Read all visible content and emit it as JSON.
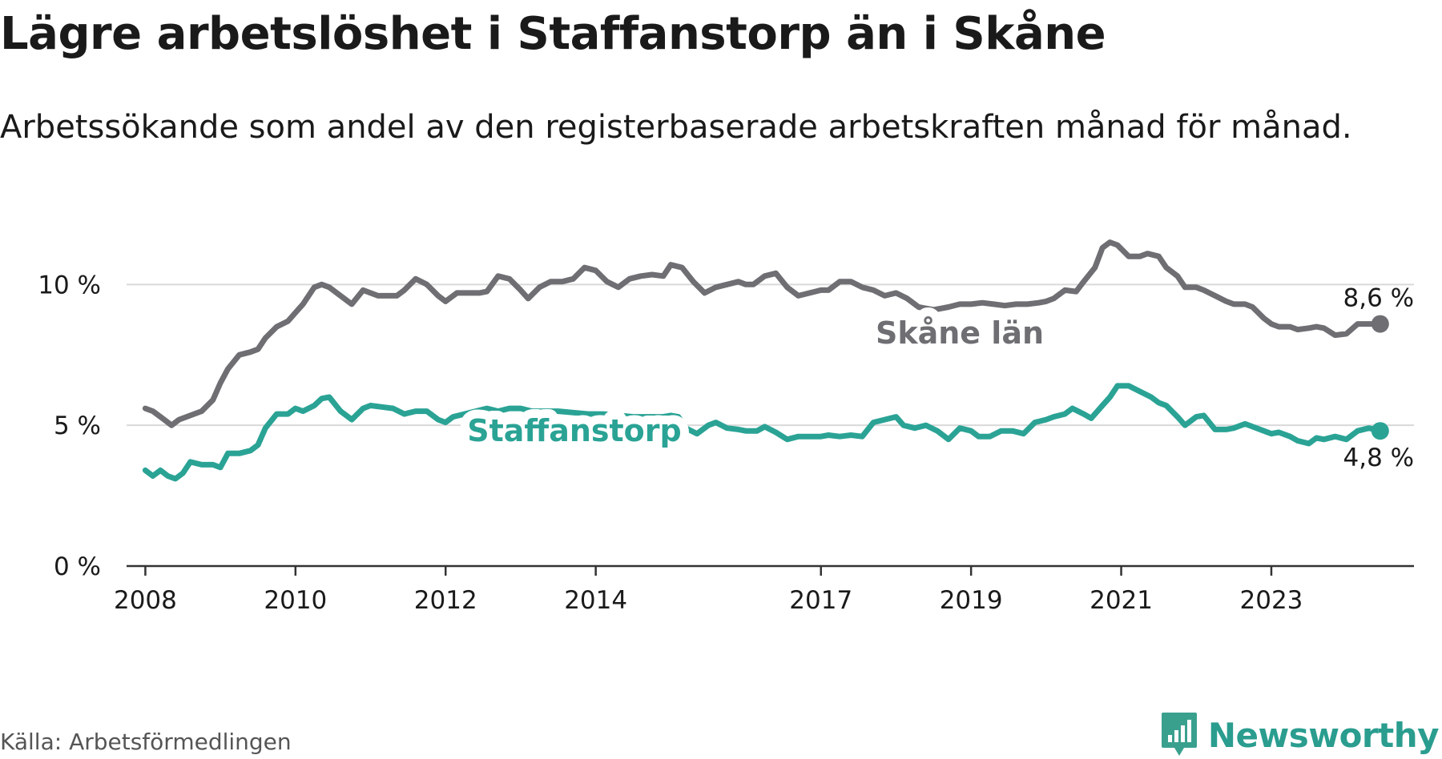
{
  "title": "Lägre arbetslöshet i Staffanstorp än i Skåne",
  "subtitle": "Arbetssökande som andel av den registerbaserade arbetskraften månad för månad.",
  "source": "Källa: Arbetsförmedlingen",
  "brand": {
    "name": "Newsworthy",
    "icon": "newsworthy-logo-icon",
    "color": "#3aa08e"
  },
  "chart_data": {
    "type": "line",
    "xlabel": "",
    "ylabel": "",
    "xlim": [
      2007.75,
      2024.9
    ],
    "ylim": [
      0,
      12
    ],
    "grid": true,
    "yticks": [
      {
        "value": 0,
        "label": "0 %"
      },
      {
        "value": 5,
        "label": "5 %"
      },
      {
        "value": 10,
        "label": "10 %"
      }
    ],
    "xticks": [
      {
        "value": 2008,
        "label": "2008"
      },
      {
        "value": 2010,
        "label": "2010"
      },
      {
        "value": 2012,
        "label": "2012"
      },
      {
        "value": 2014,
        "label": "2014"
      },
      {
        "value": 2017,
        "label": "2017"
      },
      {
        "value": 2019,
        "label": "2019"
      },
      {
        "value": 2021,
        "label": "2021"
      },
      {
        "value": 2023,
        "label": "2023"
      }
    ],
    "series": [
      {
        "name": "Skåne län",
        "color": "#6e6e73",
        "end_label": "8,6 %",
        "points": [
          [
            2008.0,
            5.6
          ],
          [
            2008.1,
            5.5
          ],
          [
            2008.25,
            5.2
          ],
          [
            2008.35,
            5.0
          ],
          [
            2008.45,
            5.2
          ],
          [
            2008.6,
            5.35
          ],
          [
            2008.75,
            5.5
          ],
          [
            2008.9,
            5.9
          ],
          [
            2009.0,
            6.5
          ],
          [
            2009.1,
            7.0
          ],
          [
            2009.25,
            7.5
          ],
          [
            2009.4,
            7.6
          ],
          [
            2009.5,
            7.7
          ],
          [
            2009.6,
            8.1
          ],
          [
            2009.75,
            8.5
          ],
          [
            2009.9,
            8.7
          ],
          [
            2010.0,
            9.0
          ],
          [
            2010.1,
            9.3
          ],
          [
            2010.25,
            9.9
          ],
          [
            2010.35,
            10.0
          ],
          [
            2010.45,
            9.9
          ],
          [
            2010.6,
            9.6
          ],
          [
            2010.75,
            9.3
          ],
          [
            2010.9,
            9.8
          ],
          [
            2011.0,
            9.7
          ],
          [
            2011.1,
            9.6
          ],
          [
            2011.25,
            9.6
          ],
          [
            2011.35,
            9.6
          ],
          [
            2011.45,
            9.8
          ],
          [
            2011.6,
            10.2
          ],
          [
            2011.75,
            10.0
          ],
          [
            2011.9,
            9.6
          ],
          [
            2012.0,
            9.4
          ],
          [
            2012.15,
            9.7
          ],
          [
            2012.3,
            9.7
          ],
          [
            2012.45,
            9.7
          ],
          [
            2012.55,
            9.75
          ],
          [
            2012.7,
            10.3
          ],
          [
            2012.85,
            10.2
          ],
          [
            2013.0,
            9.8
          ],
          [
            2013.1,
            9.5
          ],
          [
            2013.25,
            9.9
          ],
          [
            2013.4,
            10.1
          ],
          [
            2013.55,
            10.1
          ],
          [
            2013.7,
            10.2
          ],
          [
            2013.85,
            10.6
          ],
          [
            2014.0,
            10.5
          ],
          [
            2014.15,
            10.1
          ],
          [
            2014.3,
            9.9
          ],
          [
            2014.45,
            10.2
          ],
          [
            2014.6,
            10.3
          ],
          [
            2014.75,
            10.35
          ],
          [
            2014.9,
            10.3
          ],
          [
            2015.0,
            10.7
          ],
          [
            2015.15,
            10.6
          ],
          [
            2015.3,
            10.1
          ],
          [
            2015.45,
            9.7
          ],
          [
            2015.6,
            9.9
          ],
          [
            2015.75,
            10.0
          ],
          [
            2015.9,
            10.1
          ],
          [
            2016.0,
            10.0
          ],
          [
            2016.1,
            10.0
          ],
          [
            2016.25,
            10.3
          ],
          [
            2016.4,
            10.4
          ],
          [
            2016.55,
            9.9
          ],
          [
            2016.7,
            9.6
          ],
          [
            2016.85,
            9.7
          ],
          [
            2017.0,
            9.8
          ],
          [
            2017.1,
            9.8
          ],
          [
            2017.25,
            10.1
          ],
          [
            2017.4,
            10.1
          ],
          [
            2017.55,
            9.9
          ],
          [
            2017.7,
            9.8
          ],
          [
            2017.85,
            9.6
          ],
          [
            2018.0,
            9.7
          ],
          [
            2018.15,
            9.5
          ],
          [
            2018.3,
            9.2
          ],
          [
            2018.5,
            9.1
          ],
          [
            2018.7,
            9.2
          ],
          [
            2018.85,
            9.3
          ],
          [
            2019.0,
            9.3
          ],
          [
            2019.15,
            9.35
          ],
          [
            2019.3,
            9.3
          ],
          [
            2019.45,
            9.25
          ],
          [
            2019.6,
            9.3
          ],
          [
            2019.75,
            9.3
          ],
          [
            2019.9,
            9.35
          ],
          [
            2020.0,
            9.4
          ],
          [
            2020.1,
            9.5
          ],
          [
            2020.25,
            9.8
          ],
          [
            2020.4,
            9.75
          ],
          [
            2020.5,
            10.1
          ],
          [
            2020.65,
            10.6
          ],
          [
            2020.75,
            11.3
          ],
          [
            2020.85,
            11.5
          ],
          [
            2020.95,
            11.4
          ],
          [
            2021.1,
            11.0
          ],
          [
            2021.25,
            11.0
          ],
          [
            2021.35,
            11.1
          ],
          [
            2021.5,
            11.0
          ],
          [
            2021.6,
            10.6
          ],
          [
            2021.75,
            10.3
          ],
          [
            2021.85,
            9.9
          ],
          [
            2022.0,
            9.9
          ],
          [
            2022.1,
            9.8
          ],
          [
            2022.25,
            9.6
          ],
          [
            2022.4,
            9.4
          ],
          [
            2022.5,
            9.3
          ],
          [
            2022.65,
            9.3
          ],
          [
            2022.75,
            9.2
          ],
          [
            2022.9,
            8.8
          ],
          [
            2023.0,
            8.6
          ],
          [
            2023.1,
            8.5
          ],
          [
            2023.25,
            8.5
          ],
          [
            2023.35,
            8.4
          ],
          [
            2023.5,
            8.45
          ],
          [
            2023.6,
            8.5
          ],
          [
            2023.7,
            8.45
          ],
          [
            2023.85,
            8.2
          ],
          [
            2024.0,
            8.25
          ],
          [
            2024.15,
            8.6
          ],
          [
            2024.3,
            8.6
          ],
          [
            2024.45,
            8.6
          ]
        ]
      },
      {
        "name": "Staffanstorp",
        "color": "#2aa395",
        "end_label": "4,8 %",
        "points": [
          [
            2008.0,
            3.4
          ],
          [
            2008.1,
            3.2
          ],
          [
            2008.2,
            3.4
          ],
          [
            2008.3,
            3.2
          ],
          [
            2008.4,
            3.1
          ],
          [
            2008.5,
            3.3
          ],
          [
            2008.6,
            3.7
          ],
          [
            2008.75,
            3.6
          ],
          [
            2008.9,
            3.6
          ],
          [
            2009.0,
            3.5
          ],
          [
            2009.1,
            4.0
          ],
          [
            2009.25,
            4.0
          ],
          [
            2009.4,
            4.1
          ],
          [
            2009.5,
            4.3
          ],
          [
            2009.6,
            4.9
          ],
          [
            2009.75,
            5.4
          ],
          [
            2009.9,
            5.4
          ],
          [
            2010.0,
            5.6
          ],
          [
            2010.1,
            5.5
          ],
          [
            2010.25,
            5.7
          ],
          [
            2010.35,
            5.95
          ],
          [
            2010.45,
            6.0
          ],
          [
            2010.6,
            5.5
          ],
          [
            2010.75,
            5.2
          ],
          [
            2010.9,
            5.6
          ],
          [
            2011.0,
            5.7
          ],
          [
            2011.15,
            5.65
          ],
          [
            2011.3,
            5.6
          ],
          [
            2011.45,
            5.4
          ],
          [
            2011.6,
            5.5
          ],
          [
            2011.75,
            5.5
          ],
          [
            2011.9,
            5.2
          ],
          [
            2012.0,
            5.1
          ],
          [
            2012.1,
            5.3
          ],
          [
            2012.25,
            5.4
          ],
          [
            2012.4,
            5.5
          ],
          [
            2012.55,
            5.6
          ],
          [
            2012.7,
            5.5
          ],
          [
            2012.85,
            5.6
          ],
          [
            2013.0,
            5.6
          ],
          [
            2013.15,
            5.5
          ],
          [
            2013.3,
            5.5
          ],
          [
            2013.5,
            5.5
          ],
          [
            2013.7,
            5.45
          ],
          [
            2013.9,
            5.4
          ],
          [
            2014.1,
            5.4
          ],
          [
            2014.3,
            5.35
          ],
          [
            2014.5,
            5.3
          ],
          [
            2014.7,
            5.3
          ],
          [
            2014.9,
            5.3
          ],
          [
            2015.0,
            5.35
          ],
          [
            2015.1,
            5.3
          ],
          [
            2015.2,
            4.9
          ],
          [
            2015.35,
            4.7
          ],
          [
            2015.5,
            5.0
          ],
          [
            2015.6,
            5.1
          ],
          [
            2015.75,
            4.9
          ],
          [
            2015.9,
            4.85
          ],
          [
            2016.0,
            4.8
          ],
          [
            2016.15,
            4.8
          ],
          [
            2016.25,
            4.95
          ],
          [
            2016.4,
            4.75
          ],
          [
            2016.55,
            4.5
          ],
          [
            2016.7,
            4.6
          ],
          [
            2016.85,
            4.6
          ],
          [
            2017.0,
            4.6
          ],
          [
            2017.1,
            4.65
          ],
          [
            2017.25,
            4.6
          ],
          [
            2017.4,
            4.65
          ],
          [
            2017.55,
            4.6
          ],
          [
            2017.7,
            5.1
          ],
          [
            2017.85,
            5.2
          ],
          [
            2018.0,
            5.3
          ],
          [
            2018.1,
            5.0
          ],
          [
            2018.25,
            4.9
          ],
          [
            2018.4,
            5.0
          ],
          [
            2018.55,
            4.8
          ],
          [
            2018.7,
            4.5
          ],
          [
            2018.85,
            4.9
          ],
          [
            2019.0,
            4.8
          ],
          [
            2019.1,
            4.6
          ],
          [
            2019.25,
            4.6
          ],
          [
            2019.4,
            4.8
          ],
          [
            2019.55,
            4.8
          ],
          [
            2019.7,
            4.7
          ],
          [
            2019.85,
            5.1
          ],
          [
            2020.0,
            5.2
          ],
          [
            2020.1,
            5.3
          ],
          [
            2020.25,
            5.4
          ],
          [
            2020.35,
            5.6
          ],
          [
            2020.5,
            5.4
          ],
          [
            2020.6,
            5.25
          ],
          [
            2020.75,
            5.7
          ],
          [
            2020.85,
            6.0
          ],
          [
            2020.95,
            6.4
          ],
          [
            2021.1,
            6.4
          ],
          [
            2021.25,
            6.2
          ],
          [
            2021.4,
            6.0
          ],
          [
            2021.5,
            5.8
          ],
          [
            2021.6,
            5.7
          ],
          [
            2021.75,
            5.3
          ],
          [
            2021.85,
            5.0
          ],
          [
            2022.0,
            5.3
          ],
          [
            2022.1,
            5.35
          ],
          [
            2022.25,
            4.85
          ],
          [
            2022.4,
            4.85
          ],
          [
            2022.5,
            4.9
          ],
          [
            2022.65,
            5.05
          ],
          [
            2022.75,
            4.95
          ],
          [
            2022.9,
            4.8
          ],
          [
            2023.0,
            4.7
          ],
          [
            2023.1,
            4.75
          ],
          [
            2023.25,
            4.6
          ],
          [
            2023.35,
            4.45
          ],
          [
            2023.5,
            4.35
          ],
          [
            2023.6,
            4.55
          ],
          [
            2023.7,
            4.5
          ],
          [
            2023.85,
            4.6
          ],
          [
            2024.0,
            4.5
          ],
          [
            2024.15,
            4.8
          ],
          [
            2024.3,
            4.9
          ],
          [
            2024.45,
            4.8
          ]
        ]
      }
    ],
    "inline_labels": [
      {
        "series": "Skåne län",
        "text": "Skåne län"
      },
      {
        "series": "Staffanstorp",
        "text": "Staffanstorp"
      }
    ]
  }
}
